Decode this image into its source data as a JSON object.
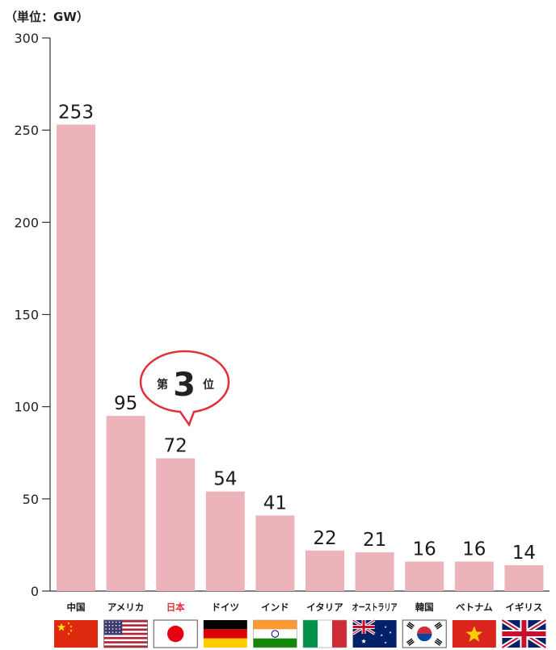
{
  "unit_label": "（単位：GW）",
  "badge": {
    "prefix": "第",
    "rank": "3",
    "suffix": "位"
  },
  "colors": {
    "bar": "#ecb4ba",
    "highlight_text": "#e0303a",
    "badge_border": "#e0303a"
  },
  "chart_data": {
    "type": "bar",
    "categories": [
      "中国",
      "アメリカ",
      "日本",
      "ドイツ",
      "インド",
      "イタリア",
      "オーストラリア",
      "韓国",
      "ベトナム",
      "イギリス"
    ],
    "values": [
      253,
      95,
      72,
      54,
      41,
      22,
      21,
      16,
      16,
      14
    ],
    "value_labels": [
      "253",
      "95",
      "72",
      "54",
      "41",
      "22",
      "21",
      "16",
      "16",
      "14"
    ],
    "highlight": "日本",
    "ylim": [
      0,
      300
    ],
    "yticks": [
      "0",
      "50",
      "100",
      "150",
      "200",
      "250",
      "300"
    ],
    "flags": [
      "china-flag-icon",
      "usa-flag-icon",
      "japan-flag-icon",
      "germany-flag-icon",
      "india-flag-icon",
      "italy-flag-icon",
      "australia-flag-icon",
      "korea-flag-icon",
      "vietnam-flag-icon",
      "uk-flag-icon"
    ],
    "grid": false
  }
}
